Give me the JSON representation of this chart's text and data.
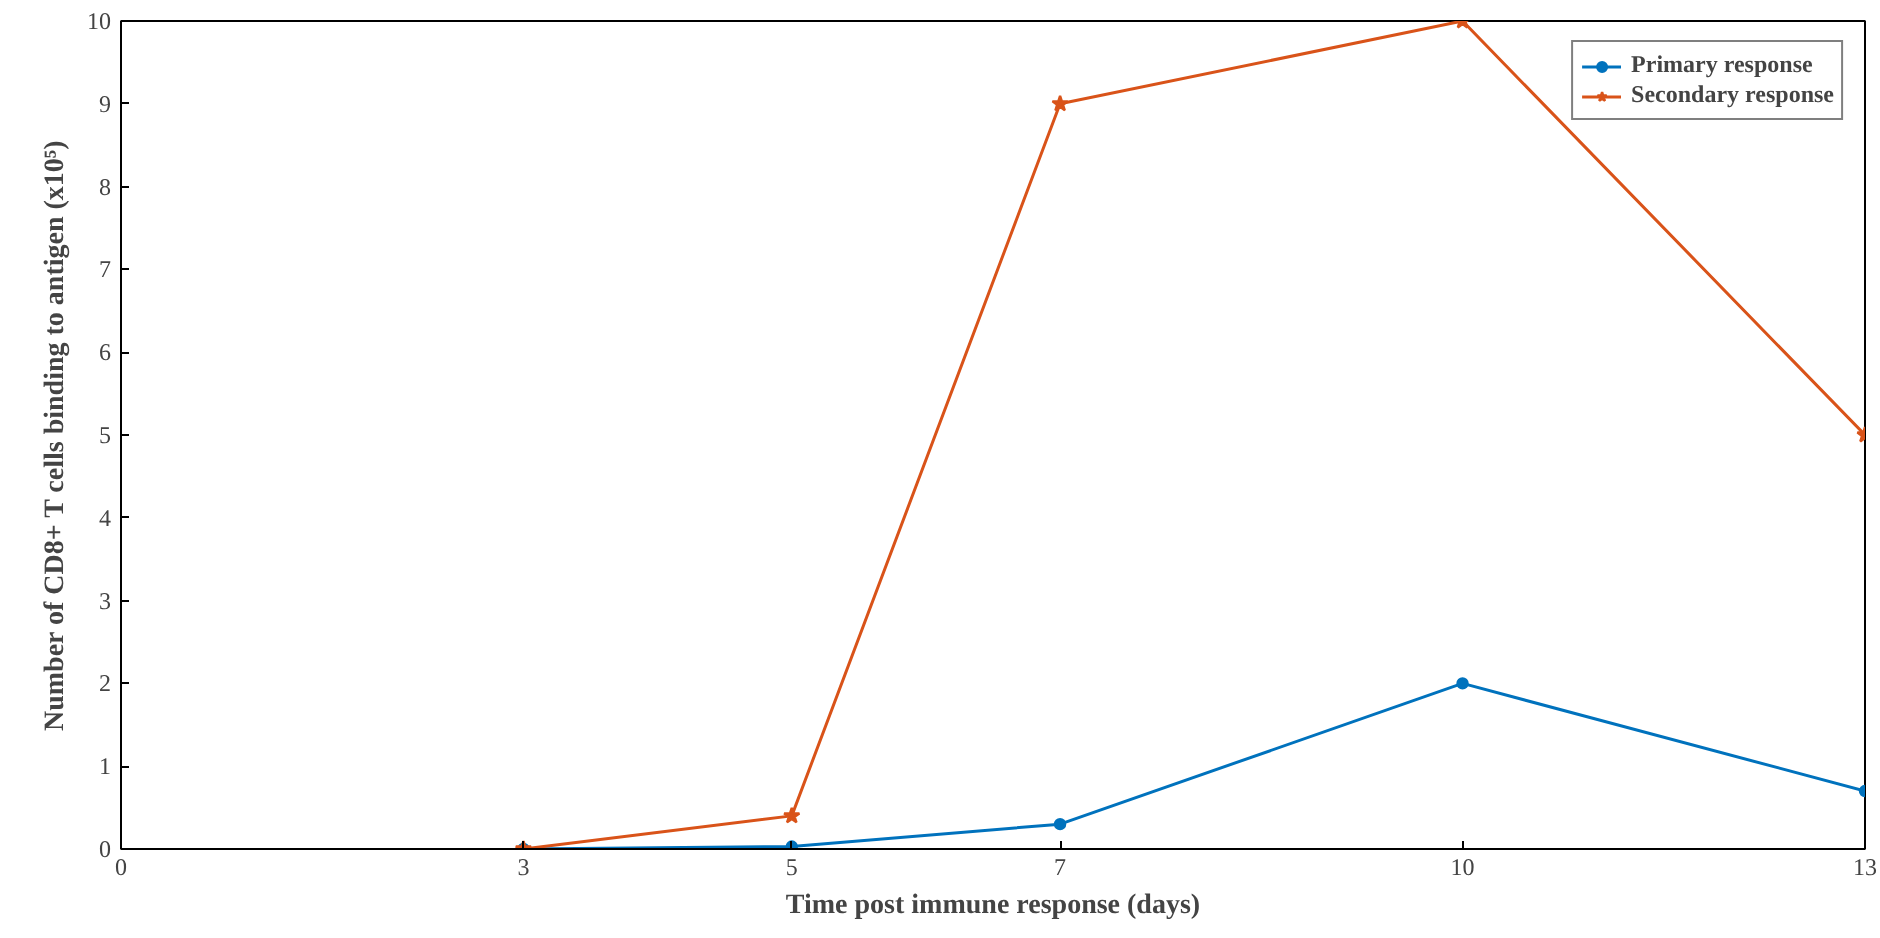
{
  "chart_data": {
    "type": "line",
    "xlabel": "Time post immune response (days)",
    "ylabel": "Number of CD8+ T cells binding to antigen (x10⁵)",
    "x": [
      3,
      5,
      7,
      10,
      13
    ],
    "series": [
      {
        "name": "Primary response",
        "color": "#0072bd",
        "marker": "circle",
        "values": [
          0,
          0.03,
          0.3,
          2,
          0.7
        ]
      },
      {
        "name": "Secondary response",
        "color": "#d95319",
        "marker": "star",
        "values": [
          0,
          0.4,
          9,
          10,
          5
        ]
      }
    ],
    "xlim": [
      0,
      13
    ],
    "xticks": [
      0,
      3,
      5,
      7,
      10,
      13
    ],
    "ylim": [
      0,
      10
    ],
    "yticks": [
      0,
      1,
      2,
      3,
      4,
      5,
      6,
      7,
      8,
      9,
      10
    ],
    "grid": false,
    "legend": "top right",
    "line_style": "solid"
  }
}
